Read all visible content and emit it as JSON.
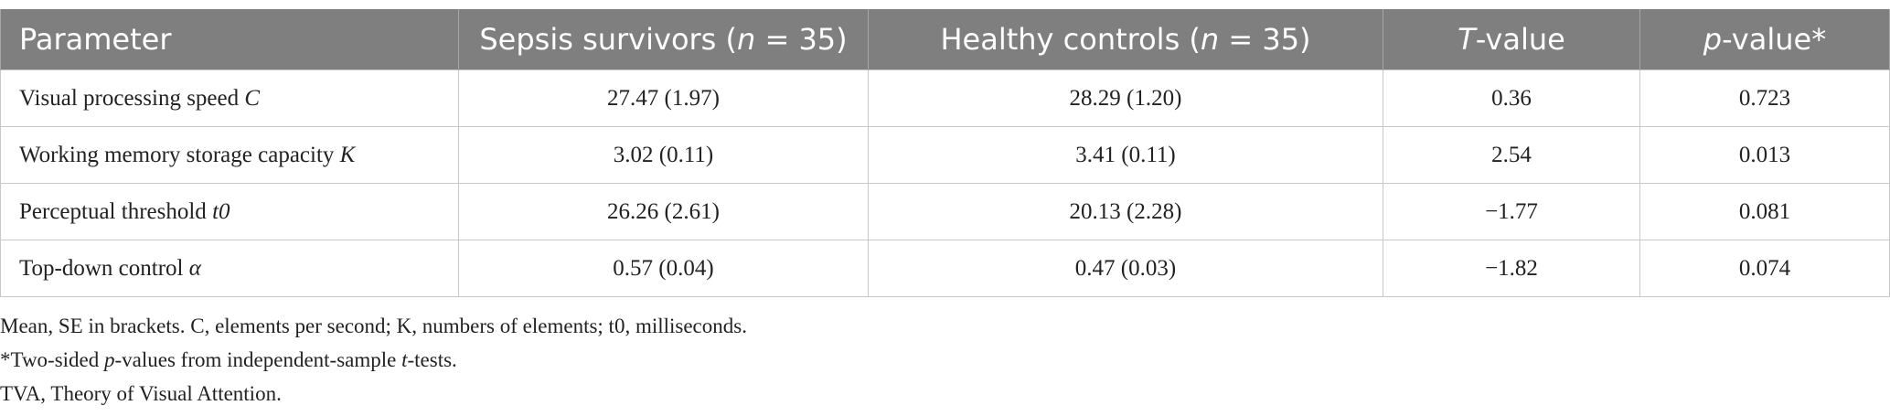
{
  "table": {
    "header": [
      [
        "Parameter"
      ],
      [
        "Sepsis survivors (",
        "n",
        " = 35)"
      ],
      [
        "Healthy controls (",
        "n",
        " = 35)"
      ],
      [
        "T",
        "-value"
      ],
      [
        "p",
        "-value*"
      ]
    ],
    "rows": [
      [
        [
          "Visual processing speed ",
          "C"
        ],
        "27.47 (1.97)",
        "28.29 (1.20)",
        "0.36",
        "0.723"
      ],
      [
        [
          "Working memory storage capacity ",
          "K"
        ],
        "3.02 (0.11)",
        "3.41 (0.11)",
        "2.54",
        "0.013"
      ],
      [
        [
          "Perceptual threshold ",
          "t0"
        ],
        "26.26 (2.61)",
        "20.13 (2.28)",
        "−1.77",
        "0.081"
      ],
      [
        [
          "Top-down control ",
          "α"
        ],
        "0.57 (0.04)",
        "0.47 (0.03)",
        "−1.82",
        "0.074"
      ]
    ]
  },
  "footnotes": [
    [
      "Mean, SE in brackets. C, elements per second; K, numbers of elements; t0, milliseconds."
    ],
    [
      "*Two-sided ",
      "p",
      "-values from independent-sample ",
      "t",
      "-tests."
    ],
    [
      "TVA, Theory of Visual Attention."
    ]
  ]
}
